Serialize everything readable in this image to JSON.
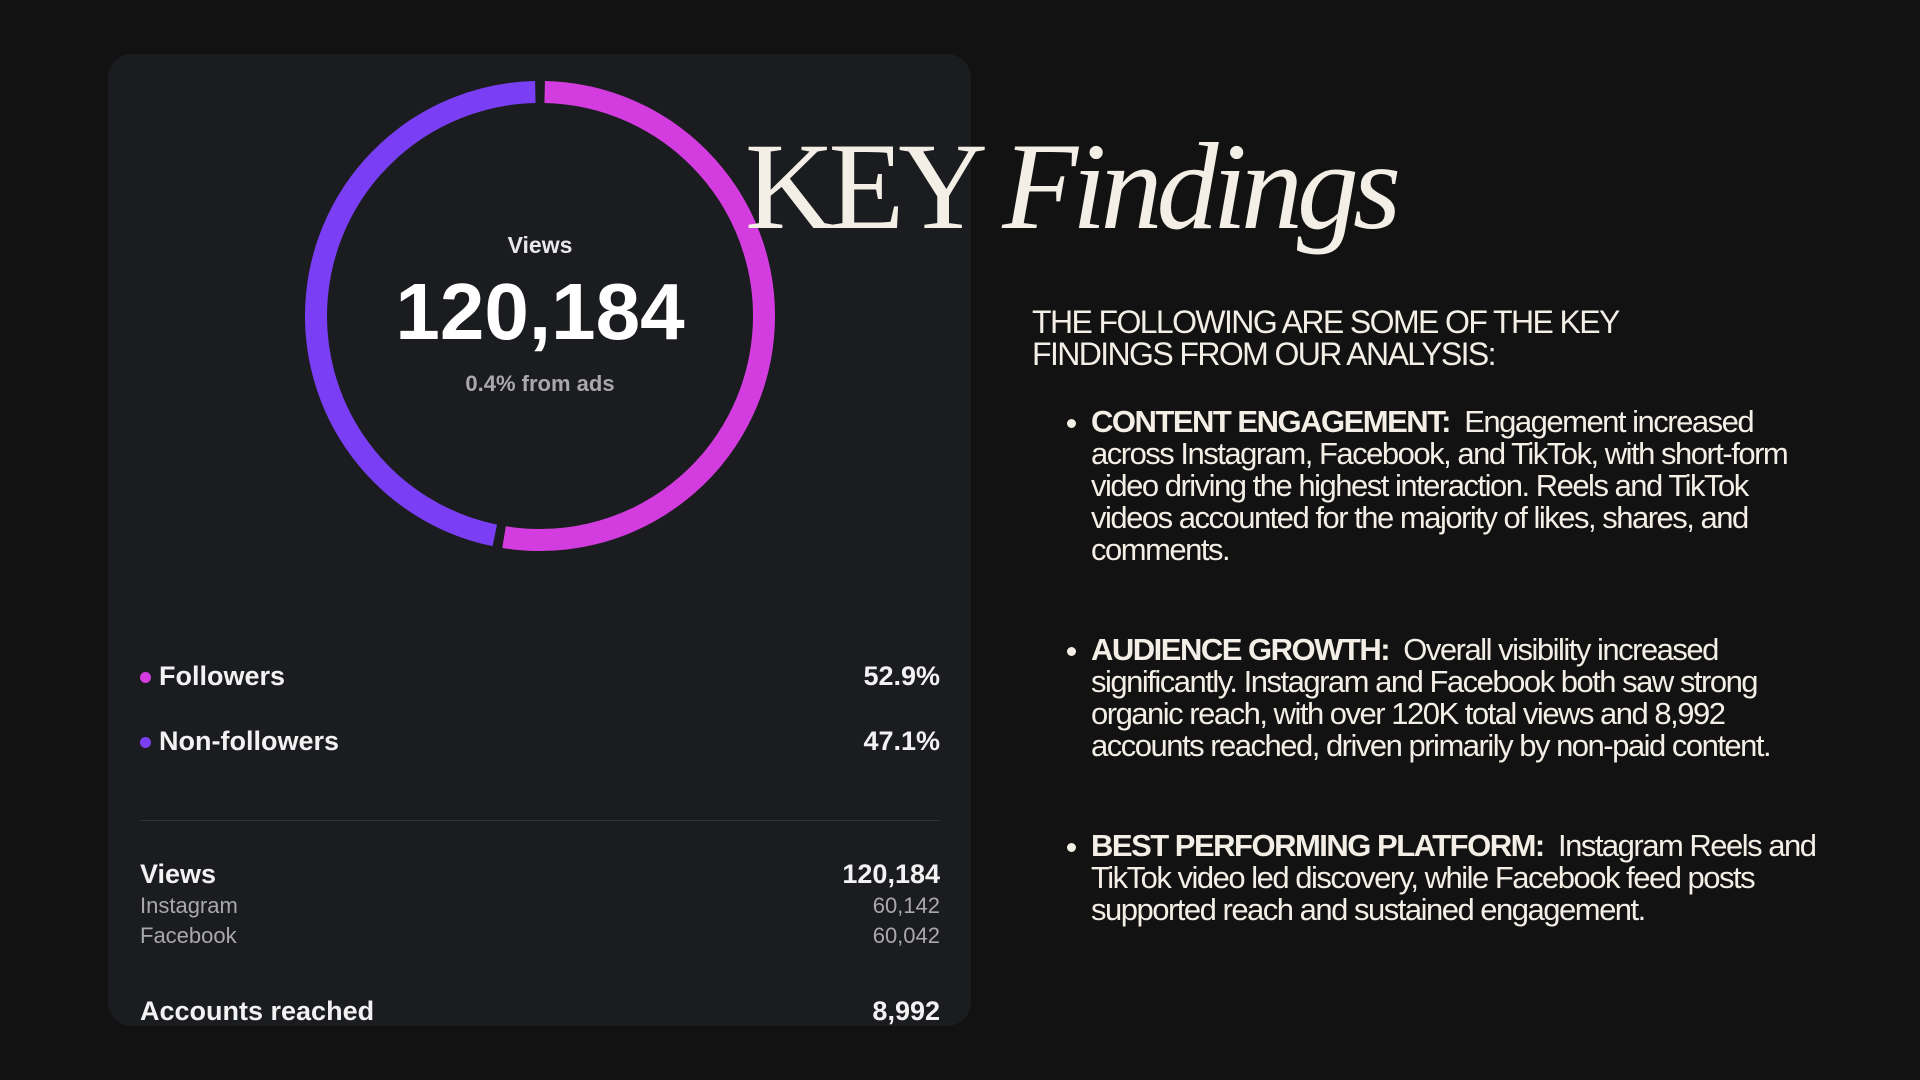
{
  "chart_data": {
    "type": "donut",
    "title": "Views",
    "total_label": "120,184",
    "subtitle": "0.4% from ads",
    "categories": [
      "Followers",
      "Non-followers"
    ],
    "values": [
      52.9,
      47.1
    ],
    "value_labels": [
      "52.9%",
      "47.1%"
    ],
    "colors": [
      "#d33de0",
      "#7a3ff4"
    ]
  },
  "breakdown": {
    "rows": [
      [
        "Views",
        "120,184"
      ],
      [
        "Instagram",
        "60,142"
      ],
      [
        "Facebook",
        "60,042"
      ],
      [
        "Accounts reached",
        "8,992"
      ]
    ]
  },
  "header": {
    "title": "KEY",
    "title_emphasis": "Findings",
    "intro": "THE FOLLOWING ARE SOME OF THE KEY FINDINGS FROM OUR ANALYSIS:"
  },
  "findings": [
    {
      "heading": "CONTENT ENGAGEMENT:",
      "text": "Engagement increased across Instagram, Facebook, and TikTok, with short-form video driving the highest interaction. Reels and TikTok videos accounted for the majority of likes, shares, and comments."
    },
    {
      "heading": "AUDIENCE GROWTH:",
      "text": "Overall visibility increased significantly. Instagram and Facebook both saw strong organic reach, with over 120K total views and 8,992 accounts reached, driven primarily by non-paid content."
    },
    {
      "heading": "BEST PERFORMING PLATFORM:",
      "text": "Instagram Reels and TikTok video led discovery, while Facebook feed posts supported reach and sustained engagement."
    }
  ]
}
